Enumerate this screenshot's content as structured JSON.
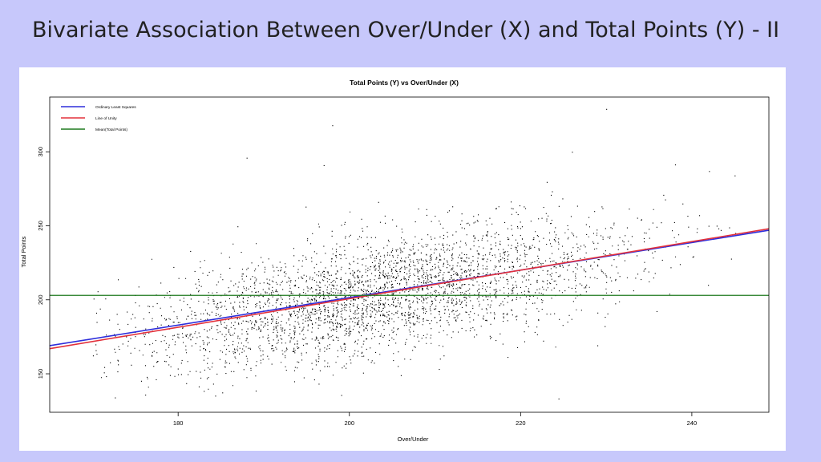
{
  "slide": {
    "title": "Bivariate Association Between Over/Under (X) and Total Points (Y) - II"
  },
  "chart_data": {
    "type": "scatter",
    "title": "Total Points (Y) vs Over/Under (X)",
    "xlabel": "Over/Under",
    "ylabel": "Total Points",
    "xlim": [
      165,
      249
    ],
    "ylim": [
      124,
      337
    ],
    "xticks": [
      180,
      200,
      220,
      240
    ],
    "yticks": [
      150,
      200,
      250,
      300
    ],
    "grid": false,
    "legend_position": "top-left",
    "legend": [
      {
        "label": "Ordinary Least Squares",
        "color": "#2e2edb"
      },
      {
        "label": "Line of Unity",
        "color": "#e3313b"
      },
      {
        "label": "Mean(Total Points)",
        "color": "#1e7a1e"
      }
    ],
    "lines": {
      "ols": {
        "x": [
          165,
          249
        ],
        "y": [
          169,
          247
        ]
      },
      "unity": {
        "x": [
          165,
          249
        ],
        "y": [
          167,
          248
        ]
      },
      "mean": {
        "y": 203
      }
    },
    "points": {
      "description": "dense cloud of several thousand games",
      "x_range": [
        170,
        246
      ],
      "y_range": [
        133,
        330
      ],
      "outliers": [
        [
          198,
          318
        ],
        [
          230,
          329
        ],
        [
          226,
          300
        ],
        [
          188,
          296
        ],
        [
          197,
          291
        ],
        [
          242,
          287
        ],
        [
          245,
          284
        ]
      ]
    },
    "colors": {
      "points": "#000000",
      "axis": "#000000"
    }
  }
}
